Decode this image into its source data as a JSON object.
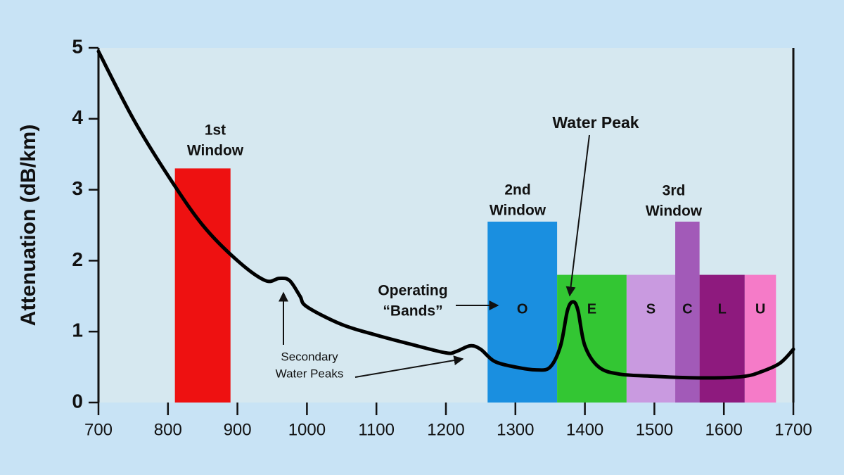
{
  "chart_data": {
    "type": "line",
    "y_label": "Attenuation (dB/km)",
    "xlim": [
      700,
      1700
    ],
    "ylim": [
      0,
      5
    ],
    "xticks": [
      700,
      800,
      900,
      1000,
      1100,
      1200,
      1300,
      1400,
      1500,
      1600,
      1700
    ],
    "yticks": [
      0,
      1,
      2,
      3,
      4,
      5
    ],
    "color": "#000000",
    "x": [
      700,
      750,
      800,
      850,
      900,
      940,
      960,
      975,
      990,
      1000,
      1050,
      1100,
      1150,
      1200,
      1215,
      1235,
      1250,
      1270,
      1300,
      1330,
      1350,
      1365,
      1375,
      1383,
      1390,
      1400,
      1420,
      1450,
      1500,
      1550,
      1600,
      1630,
      1650,
      1680,
      1700
    ],
    "values": [
      4.95,
      4.0,
      3.2,
      2.5,
      2.0,
      1.72,
      1.75,
      1.72,
      1.5,
      1.35,
      1.1,
      0.95,
      0.82,
      0.7,
      0.72,
      0.8,
      0.75,
      0.58,
      0.5,
      0.46,
      0.5,
      0.8,
      1.3,
      1.42,
      1.3,
      0.8,
      0.5,
      0.4,
      0.37,
      0.35,
      0.35,
      0.37,
      0.42,
      0.55,
      0.75
    ],
    "regions": [
      {
        "x0": 810,
        "x1": 890,
        "height": 3.3,
        "color": "#ee1111"
      },
      {
        "x0": 1260,
        "x1": 1360,
        "height": 2.55,
        "color": "#1a8fe0",
        "label": "O"
      },
      {
        "x0": 1360,
        "x1": 1460,
        "height": 1.8,
        "color": "#33c633",
        "label": "E"
      },
      {
        "x0": 1460,
        "x1": 1530,
        "height": 1.8,
        "color": "#c99ae0",
        "label": "S"
      },
      {
        "x0": 1530,
        "x1": 1565,
        "height": 2.55,
        "color": "#a25ab8",
        "label": "C"
      },
      {
        "x0": 1565,
        "x1": 1630,
        "height": 1.8,
        "color": "#8e1a7e",
        "label": "L"
      },
      {
        "x0": 1630,
        "x1": 1675,
        "height": 1.8,
        "color": "#f57bc8",
        "label": "U"
      }
    ],
    "annotations": {
      "first_window": [
        "1st",
        "Window"
      ],
      "second_window": [
        "2nd",
        "Window"
      ],
      "third_window": [
        "3rd",
        "Window"
      ],
      "water_peak": "Water Peak",
      "operating_bands": [
        "Operating",
        "“Bands”"
      ],
      "secondary_peaks": [
        "Secondary",
        "Water Peaks"
      ]
    }
  }
}
